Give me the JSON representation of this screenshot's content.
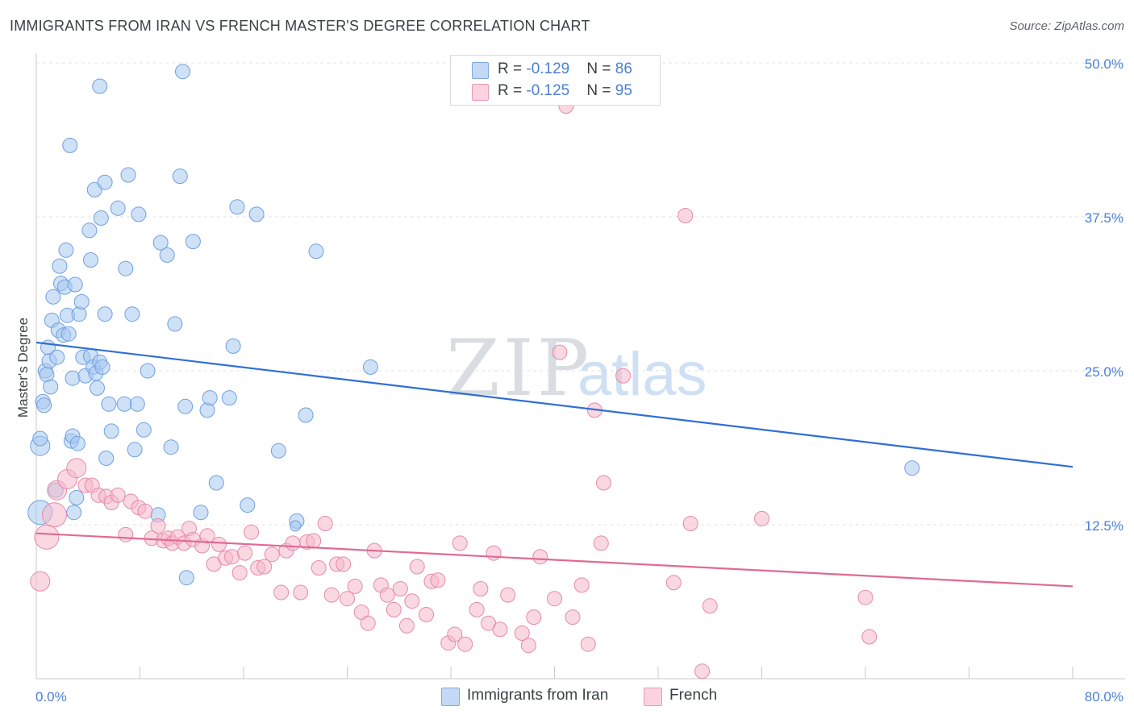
{
  "title": "IMMIGRANTS FROM IRAN VS FRENCH MASTER'S DEGREE CORRELATION CHART",
  "source": "Source: ZipAtlas.com",
  "watermark": {
    "zip": "ZIP",
    "atlas": "atlas"
  },
  "legend": {
    "rows": [
      {
        "r_label": "R = ",
        "r_value": "-0.129",
        "n_label": "N = ",
        "n_value": "86",
        "color": "#a8c8f0"
      },
      {
        "r_label": "R = ",
        "r_value": "-0.125",
        "n_label": "N = ",
        "n_value": "95",
        "color": "#f5b8cb"
      }
    ]
  },
  "bottom_legend": [
    {
      "label": "Immigrants from Iran",
      "color": "#a8c8f0"
    },
    {
      "label": "French",
      "color": "#f5b8cb"
    }
  ],
  "chart_data": {
    "type": "scatter",
    "title": "IMMIGRANTS FROM IRAN VS FRENCH MASTER'S DEGREE CORRELATION CHART",
    "xlabel": "",
    "ylabel": "Master's Degree",
    "xlim": [
      0,
      80
    ],
    "ylim": [
      0,
      50
    ],
    "x_tick_labels": [
      "0.0%",
      "80.0%"
    ],
    "y_ticks": [
      12.5,
      25.0,
      37.5,
      50.0
    ],
    "y_tick_labels": [
      "12.5%",
      "25.0%",
      "37.5%",
      "50.0%"
    ],
    "grid": true,
    "legend_position": "top-center",
    "series": [
      {
        "name": "Immigrants from Iran",
        "color": "#6fa0e0",
        "fill": "#a8c8f0",
        "trend": {
          "x": [
            0,
            80
          ],
          "y": [
            27.3,
            17.2
          ],
          "color": "#2f6fd6"
        },
        "points": [
          [
            0.3,
            13.5,
            3
          ],
          [
            0.3,
            18.9,
            2
          ],
          [
            0.3,
            19.5,
            1
          ],
          [
            0.5,
            22.5,
            1
          ],
          [
            0.6,
            22.2,
            1
          ],
          [
            0.7,
            25.0,
            1
          ],
          [
            0.8,
            24.7,
            1
          ],
          [
            0.9,
            26.9,
            1
          ],
          [
            1.0,
            25.8,
            1
          ],
          [
            1.1,
            23.7,
            1
          ],
          [
            1.2,
            29.1,
            1
          ],
          [
            1.3,
            31.0,
            1
          ],
          [
            1.5,
            15.3,
            1
          ],
          [
            1.6,
            26.1,
            1
          ],
          [
            1.7,
            28.3,
            1
          ],
          [
            1.8,
            33.5,
            1
          ],
          [
            1.9,
            32.1,
            1
          ],
          [
            2.1,
            27.9,
            1
          ],
          [
            2.2,
            31.8,
            1
          ],
          [
            2.3,
            34.8,
            1
          ],
          [
            2.4,
            29.5,
            1
          ],
          [
            2.5,
            28.0,
            1
          ],
          [
            2.6,
            43.3,
            1
          ],
          [
            2.7,
            19.3,
            1
          ],
          [
            2.8,
            19.7,
            1
          ],
          [
            2.8,
            24.4,
            1
          ],
          [
            2.9,
            13.5,
            1
          ],
          [
            3.1,
            14.7,
            1
          ],
          [
            3.0,
            32.0,
            1
          ],
          [
            3.2,
            19.1,
            1
          ],
          [
            3.3,
            29.6,
            1
          ],
          [
            3.5,
            30.6,
            1
          ],
          [
            3.6,
            26.1,
            1
          ],
          [
            3.8,
            24.6,
            1
          ],
          [
            4.1,
            36.4,
            1
          ],
          [
            4.2,
            26.2,
            1
          ],
          [
            4.2,
            34.0,
            1
          ],
          [
            4.4,
            25.3,
            1
          ],
          [
            4.5,
            39.7,
            1
          ],
          [
            4.6,
            24.8,
            1
          ],
          [
            4.7,
            23.6,
            1
          ],
          [
            4.9,
            48.1,
            1
          ],
          [
            4.9,
            25.7,
            1
          ],
          [
            5.0,
            37.4,
            1
          ],
          [
            5.1,
            25.3,
            1
          ],
          [
            5.3,
            29.6,
            1
          ],
          [
            5.3,
            40.3,
            1
          ],
          [
            5.4,
            17.9,
            1
          ],
          [
            5.6,
            22.3,
            1
          ],
          [
            5.8,
            20.1,
            1
          ],
          [
            6.3,
            38.2,
            1
          ],
          [
            6.8,
            22.3,
            1
          ],
          [
            6.9,
            33.3,
            1
          ],
          [
            7.1,
            40.9,
            1
          ],
          [
            7.4,
            29.6,
            1
          ],
          [
            7.6,
            18.6,
            1
          ],
          [
            7.8,
            22.3,
            1
          ],
          [
            7.9,
            37.7,
            1
          ],
          [
            8.3,
            20.2,
            1
          ],
          [
            8.6,
            25.0,
            1
          ],
          [
            9.4,
            13.3,
            1
          ],
          [
            9.6,
            35.4,
            1
          ],
          [
            10.1,
            34.4,
            1
          ],
          [
            10.4,
            18.8,
            1
          ],
          [
            10.7,
            28.8,
            1
          ],
          [
            11.1,
            40.8,
            1
          ],
          [
            11.3,
            49.3,
            1
          ],
          [
            11.5,
            22.1,
            1
          ],
          [
            11.6,
            8.2,
            1
          ],
          [
            12.1,
            35.5,
            1
          ],
          [
            12.7,
            13.5,
            1
          ],
          [
            13.2,
            21.8,
            1
          ],
          [
            13.4,
            22.8,
            1
          ],
          [
            13.9,
            15.9,
            1
          ],
          [
            14.9,
            22.8,
            1
          ],
          [
            15.2,
            27.0,
            1
          ],
          [
            15.5,
            38.3,
            1
          ],
          [
            16.3,
            14.1,
            1
          ],
          [
            17.0,
            37.7,
            1
          ],
          [
            18.7,
            18.5,
            1
          ],
          [
            20.1,
            12.8,
            1
          ],
          [
            20.8,
            21.4,
            1
          ],
          [
            21.6,
            34.7,
            1
          ],
          [
            25.8,
            25.3,
            1
          ],
          [
            67.6,
            17.1,
            1
          ],
          [
            20.0,
            12.4,
            0
          ]
        ]
      },
      {
        "name": "French",
        "color": "#e58aa8",
        "fill": "#f5b8cb",
        "trend": {
          "x": [
            0,
            80
          ],
          "y": [
            11.8,
            7.5
          ],
          "color": "#e06a95"
        },
        "points": [
          [
            0.3,
            7.9,
            2
          ],
          [
            0.8,
            11.5,
            3
          ],
          [
            1.4,
            13.3,
            3
          ],
          [
            1.6,
            15.3,
            2
          ],
          [
            2.4,
            16.2,
            2
          ],
          [
            3.1,
            17.1,
            2
          ],
          [
            3.8,
            15.7,
            1
          ],
          [
            4.3,
            15.7,
            1
          ],
          [
            4.8,
            14.9,
            1
          ],
          [
            5.4,
            14.8,
            1
          ],
          [
            5.8,
            14.3,
            1
          ],
          [
            6.3,
            14.9,
            1
          ],
          [
            6.9,
            11.7,
            1
          ],
          [
            7.3,
            14.4,
            1
          ],
          [
            7.9,
            13.9,
            1
          ],
          [
            8.4,
            13.6,
            1
          ],
          [
            8.9,
            11.4,
            1
          ],
          [
            9.4,
            12.4,
            1
          ],
          [
            9.8,
            11.2,
            1
          ],
          [
            10.2,
            11.4,
            1
          ],
          [
            10.5,
            11.0,
            1
          ],
          [
            10.9,
            11.5,
            1
          ],
          [
            11.4,
            11.0,
            1
          ],
          [
            11.8,
            12.2,
            1
          ],
          [
            12.1,
            11.3,
            1
          ],
          [
            12.8,
            10.8,
            1
          ],
          [
            13.2,
            11.6,
            1
          ],
          [
            13.7,
            9.3,
            1
          ],
          [
            14.1,
            10.9,
            1
          ],
          [
            14.6,
            9.8,
            1
          ],
          [
            15.1,
            9.9,
            1
          ],
          [
            15.7,
            8.6,
            1
          ],
          [
            16.1,
            10.2,
            1
          ],
          [
            16.6,
            11.9,
            1
          ],
          [
            17.1,
            9.0,
            1
          ],
          [
            17.6,
            9.1,
            1
          ],
          [
            18.2,
            10.1,
            1
          ],
          [
            18.9,
            7.0,
            1
          ],
          [
            19.3,
            10.4,
            1
          ],
          [
            19.8,
            11.0,
            1
          ],
          [
            20.4,
            7.0,
            1
          ],
          [
            20.9,
            11.1,
            1
          ],
          [
            21.4,
            11.2,
            1
          ],
          [
            21.8,
            9.0,
            1
          ],
          [
            22.3,
            12.6,
            1
          ],
          [
            22.8,
            6.8,
            1
          ],
          [
            23.2,
            9.3,
            1
          ],
          [
            23.7,
            9.3,
            1
          ],
          [
            24.0,
            6.5,
            1
          ],
          [
            24.6,
            7.5,
            1
          ],
          [
            25.1,
            5.4,
            1
          ],
          [
            25.6,
            4.5,
            1
          ],
          [
            26.1,
            10.4,
            1
          ],
          [
            26.6,
            7.6,
            1
          ],
          [
            27.1,
            6.8,
            1
          ],
          [
            27.6,
            5.6,
            1
          ],
          [
            28.1,
            7.3,
            1
          ],
          [
            28.6,
            4.3,
            1
          ],
          [
            29.0,
            6.3,
            1
          ],
          [
            29.4,
            9.1,
            1
          ],
          [
            30.1,
            5.2,
            1
          ],
          [
            30.5,
            7.9,
            1
          ],
          [
            31.0,
            8.0,
            1
          ],
          [
            31.8,
            2.9,
            1
          ],
          [
            32.3,
            3.6,
            1
          ],
          [
            32.7,
            11.0,
            1
          ],
          [
            33.1,
            2.8,
            1
          ],
          [
            34.0,
            5.6,
            1
          ],
          [
            34.3,
            7.3,
            1
          ],
          [
            34.9,
            4.5,
            1
          ],
          [
            35.3,
            10.2,
            1
          ],
          [
            35.8,
            4.0,
            1
          ],
          [
            36.4,
            6.8,
            1
          ],
          [
            37.5,
            3.7,
            1
          ],
          [
            38.0,
            2.7,
            1
          ],
          [
            38.4,
            5.0,
            1
          ],
          [
            38.9,
            9.9,
            1
          ],
          [
            40.0,
            6.5,
            1
          ],
          [
            40.4,
            26.5,
            1
          ],
          [
            40.9,
            46.5,
            1
          ],
          [
            41.4,
            5.0,
            1
          ],
          [
            42.1,
            7.6,
            1
          ],
          [
            42.6,
            2.8,
            1
          ],
          [
            43.1,
            21.8,
            1
          ],
          [
            43.6,
            11.0,
            1
          ],
          [
            43.8,
            15.9,
            1
          ],
          [
            45.3,
            24.6,
            1
          ],
          [
            49.2,
            7.8,
            1
          ],
          [
            50.1,
            37.6,
            1
          ],
          [
            50.5,
            12.6,
            1
          ],
          [
            51.4,
            0.6,
            1
          ],
          [
            52.0,
            5.9,
            1
          ],
          [
            56.0,
            13.0,
            1
          ],
          [
            64.0,
            6.6,
            1
          ],
          [
            64.3,
            3.4,
            1
          ]
        ]
      }
    ]
  }
}
